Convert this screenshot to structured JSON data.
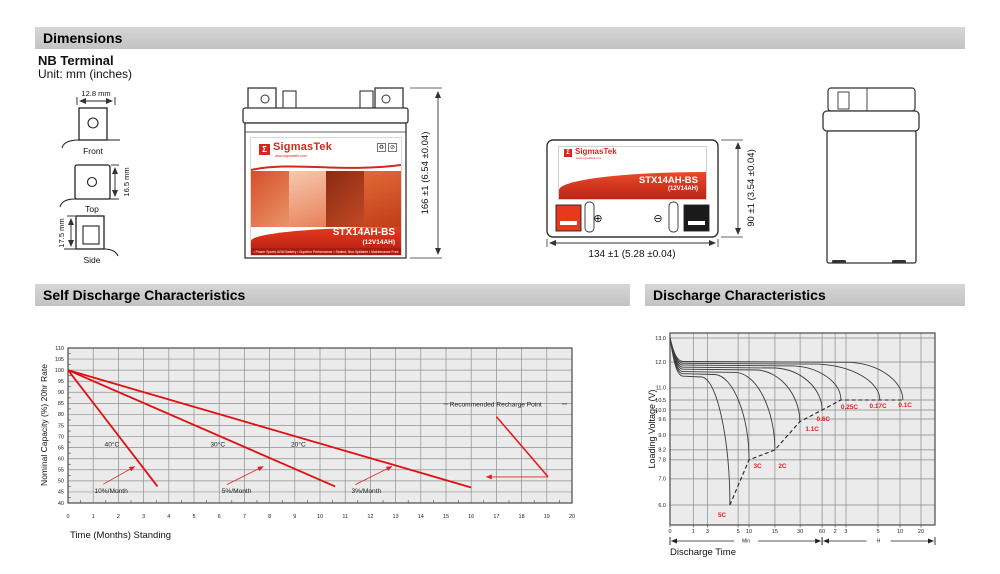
{
  "header": {
    "dimensions_title": "Dimensions",
    "self_discharge_title": "Self Discharge Characteristics",
    "discharge_title": "Discharge Characteristics"
  },
  "terminal": {
    "title": "NB Terminal",
    "unit": "Unit: mm (inches)",
    "front_dim": "12.8 mm",
    "front_label": "Front",
    "top_dim": "16.5 mm",
    "top_label": "Top",
    "side_dim": "17.5 mm",
    "side_label": "Side"
  },
  "battery": {
    "logo_symbol": "Σ",
    "brand": "SigmasTek",
    "website": "www.sigmastek.com",
    "model": "STX14AH-BS",
    "rating": "(12V14AH)",
    "features": "• Power Sports AGM Battery   • Superior Performance   • Sealed, Non-Spillable   • Maintenance Free",
    "icons": {
      "recycle": "♻",
      "no_trash": "⊘"
    },
    "plus_symbol": "⊕",
    "minus_symbol": "⊖",
    "front_height_dim": "166 ±1 (6.54 ±0.04)",
    "top_width_dim": "134 ±1 (5.28 ±0.04)",
    "top_depth_dim": "90 ±1 (3.54 ±0.04)",
    "colors": {
      "brand_red": "#d2281e",
      "positive_terminal": "#e8391d",
      "negative_terminal": "#1a1a1a"
    }
  },
  "chart_data": [
    {
      "id": "self_discharge",
      "type": "line",
      "title": "Self Discharge Characteristics",
      "xlabel": "Time (Months) Standing",
      "ylabel": "Nominal Capacity (%) 20hr Rate",
      "xlim": [
        0,
        20
      ],
      "ylim": [
        40,
        110
      ],
      "x_tick_step": 1,
      "y_tick_step": 5,
      "grid": true,
      "line_color": "#e01010",
      "series": [
        {
          "name": "40°C self-discharge (10%/Month)",
          "points": [
            [
              0,
              100
            ],
            [
              3.55,
              47.5
            ]
          ]
        },
        {
          "name": "30°C self-discharge (5%/Month)",
          "points": [
            [
              0,
              100
            ],
            [
              10.6,
              47.5
            ]
          ]
        },
        {
          "name": "20°C self-discharge (3%/Month)",
          "points": [
            [
              0,
              100
            ],
            [
              16,
              47
            ]
          ]
        }
      ],
      "annotations": [
        {
          "text": "40°C",
          "x": 1.45,
          "y": 65.5
        },
        {
          "text": "30°C",
          "x": 5.65,
          "y": 65.5
        },
        {
          "text": "20°C",
          "x": 8.85,
          "y": 65.5
        },
        {
          "text": "10%/Month",
          "x": 1.05,
          "y": 44.5
        },
        {
          "text": "5%/Month",
          "x": 6.1,
          "y": 44.5
        },
        {
          "text": "3%/Month",
          "x": 11.25,
          "y": 44.5
        },
        {
          "text": "Recommended Recharge Point",
          "x": 15.15,
          "y": 83.5
        }
      ],
      "arrows": [
        {
          "x1": 1.4,
          "y1": 48.5,
          "x2": 2.65,
          "y2": 56.5,
          "head": true,
          "w": 0.8
        },
        {
          "x1": 6.3,
          "y1": 48.3,
          "x2": 7.75,
          "y2": 56.5,
          "head": true,
          "w": 0.8
        },
        {
          "x1": 11.4,
          "y1": 48.3,
          "x2": 12.85,
          "y2": 56.5,
          "head": true,
          "w": 0.8
        },
        {
          "x1": 17.0,
          "y1": 79.0,
          "x2": 19.05,
          "y2": 51.8,
          "head": false,
          "w": 1.6
        },
        {
          "x1": 19.05,
          "y1": 51.8,
          "x2": 16.6,
          "y2": 51.8,
          "head": true,
          "w": 0.9
        },
        {
          "x1": 14.9,
          "y1": 84.7,
          "x2": 15.1,
          "y2": 84.7,
          "head": false,
          "w": 0.8,
          "color": "#555555"
        },
        {
          "x1": 19.6,
          "y1": 84.7,
          "x2": 19.8,
          "y2": 84.7,
          "head": false,
          "w": 0.8,
          "color": "#555555"
        }
      ]
    },
    {
      "id": "discharge",
      "type": "line",
      "title": "Discharge Characteristics",
      "xlabel": "Discharge Time",
      "ylabel": "Loading Voltage (V)",
      "curve_color": "#3c3c3c",
      "label_color": "#e02020",
      "x_ticks": [
        {
          "label": "0",
          "f": 0
        },
        {
          "label": "1",
          "f": 0.088
        },
        {
          "label": "3",
          "f": 0.141
        },
        {
          "label": "5",
          "f": 0.257
        },
        {
          "label": "10",
          "f": 0.298
        },
        {
          "label": "15",
          "f": 0.396
        },
        {
          "label": "30",
          "f": 0.491
        },
        {
          "label": "60",
          "f": 0.574
        },
        {
          "label": "2",
          "f": 0.623
        },
        {
          "label": "3",
          "f": 0.664
        },
        {
          "label": "5",
          "f": 0.785
        },
        {
          "label": "10",
          "f": 0.868
        },
        {
          "label": "20",
          "f": 0.947
        }
      ],
      "y_ticks": [
        {
          "label": "13.0",
          "v": 13.0,
          "f": 0.026
        },
        {
          "label": "12.0",
          "v": 12.0,
          "f": 0.151
        },
        {
          "label": "11.0",
          "v": 11.0,
          "f": 0.286
        },
        {
          "label": "10.5",
          "v": 10.5,
          "f": 0.349
        },
        {
          "label": "10.0",
          "v": 10.0,
          "f": 0.401
        },
        {
          "label": "9.6",
          "v": 9.6,
          "f": 0.448
        },
        {
          "label": "9.0",
          "v": 9.0,
          "f": 0.531
        },
        {
          "label": "8.2",
          "v": 8.2,
          "f": 0.609
        },
        {
          "label": "7.8",
          "v": 7.8,
          "f": 0.661
        },
        {
          "label": "7.0",
          "v": 7.0,
          "f": 0.76
        },
        {
          "label": "6.0",
          "v": 6.0,
          "f": 0.896
        }
      ],
      "time_units": [
        {
          "label": "Min",
          "from_f": 0,
          "to_f": 0.574
        },
        {
          "label": "H",
          "from_f": 0.574,
          "to_f": 1
        }
      ],
      "curves": [
        {
          "name": "0.1C",
          "level_v": 12.02,
          "knee_f": 0.68,
          "end_f": 0.879,
          "end_v": 10.5,
          "label": {
            "f": 0.862,
            "vf": 0.385
          }
        },
        {
          "name": "0.17C",
          "level_v": 11.95,
          "knee_f": 0.56,
          "end_f": 0.792,
          "end_v": 10.5,
          "label": {
            "f": 0.753,
            "vf": 0.39
          }
        },
        {
          "name": "0.25C",
          "level_v": 11.88,
          "knee_f": 0.47,
          "end_f": 0.645,
          "end_v": 10.5,
          "label": {
            "f": 0.645,
            "vf": 0.396
          }
        },
        {
          "name": "0.6C",
          "level_v": 11.8,
          "knee_f": 0.4,
          "end_f": 0.574,
          "end_v": 10.0,
          "label": {
            "f": 0.553,
            "vf": 0.458
          }
        },
        {
          "name": "1.1C",
          "level_v": 11.72,
          "knee_f": 0.33,
          "end_f": 0.49,
          "end_v": 9.5,
          "label": {
            "f": 0.511,
            "vf": 0.51
          }
        },
        {
          "name": "2C",
          "level_v": 11.63,
          "knee_f": 0.25,
          "end_f": 0.396,
          "end_v": 8.2,
          "label": {
            "f": 0.409,
            "vf": 0.703
          }
        },
        {
          "name": "3C",
          "level_v": 11.55,
          "knee_f": 0.17,
          "end_f": 0.298,
          "end_v": 7.8,
          "label": {
            "f": 0.315,
            "vf": 0.703
          }
        },
        {
          "name": "5C",
          "level_v": 11.45,
          "knee_f": 0.12,
          "end_f": 0.226,
          "end_v": 6.0,
          "label": {
            "f": 0.181,
            "vf": 0.958
          }
        }
      ],
      "cutoff_line": {
        "points_fv": [
          [
            0.226,
            6.0
          ],
          [
            0.298,
            7.8
          ],
          [
            0.396,
            8.2
          ],
          [
            0.49,
            9.5
          ],
          [
            0.574,
            10.0
          ],
          [
            0.645,
            10.5
          ],
          [
            0.885,
            10.5
          ]
        ],
        "dashed": true,
        "color": "#222222"
      }
    }
  ]
}
